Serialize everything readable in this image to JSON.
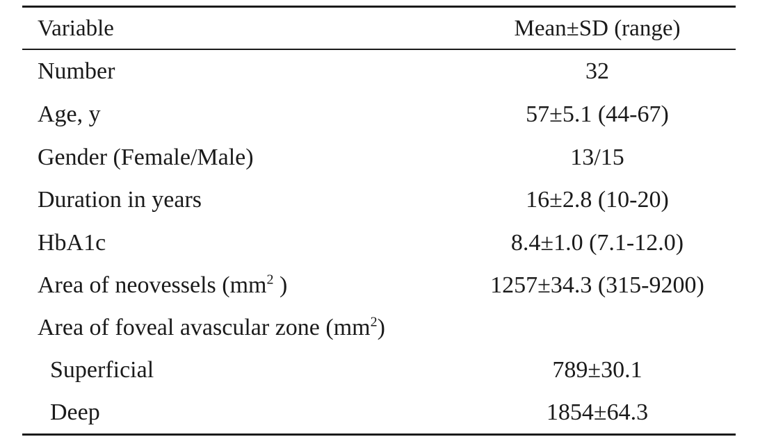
{
  "header": {
    "variable": "Variable",
    "value": "Mean±SD (range)"
  },
  "rows": [
    {
      "label": "Number",
      "value": "32"
    },
    {
      "label": "Age, y",
      "value": "57±5.1 (44-67)"
    },
    {
      "label": "Gender (Female/Male)",
      "value": "13/15"
    },
    {
      "label": "Duration in years",
      "value": "16±2.8 (10-20)"
    },
    {
      "label": "HbA1c",
      "value": "8.4±1.0 (7.1-12.0)"
    },
    {
      "label": "Area of neovessels (mm",
      "label_sup": "2",
      "label_end": " )",
      "value": "1257±34.3 (315-9200)"
    },
    {
      "label": "Area of foveal avascular zone (mm",
      "label_sup": "2",
      "label_end": ")",
      "value": ""
    },
    {
      "label": "Superficial",
      "value": "789±30.1"
    },
    {
      "label": "Deep",
      "value": "1854±64.3"
    }
  ]
}
